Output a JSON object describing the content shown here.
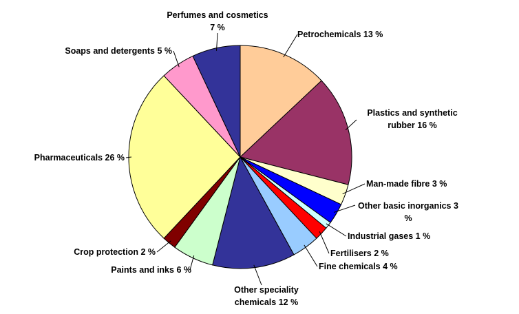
{
  "chart_data": {
    "type": "pie",
    "categories": [
      "Petrochemicals",
      "Plastics and synthetic rubber",
      "Man-made fibre",
      "Other basic inorganics",
      "Industrial gases",
      "Fertilisers",
      "Fine chemicals",
      "Other speciality chemicals",
      "Paints and inks",
      "Crop protection",
      "Pharmaceuticals",
      "Soaps and detergents",
      "Perfumes and cosmetics"
    ],
    "values": [
      13,
      16,
      3,
      3,
      1,
      2,
      4,
      12,
      6,
      2,
      26,
      5,
      7
    ],
    "value_labels": [
      "13 %",
      "16 %",
      "3 %",
      "3 %",
      "1 %",
      "2 %",
      "4 %",
      "12 %",
      "6 %",
      "2 %",
      "26 %",
      "5 %",
      "7 %"
    ],
    "colors": [
      "#ffcc99",
      "#993366",
      "#ffffcc",
      "#0000ff",
      "#ccffff",
      "#ff0000",
      "#99ccff",
      "#333399",
      "#ccffcc",
      "#800000",
      "#ffff99",
      "#ff99cc",
      "#333399"
    ]
  }
}
